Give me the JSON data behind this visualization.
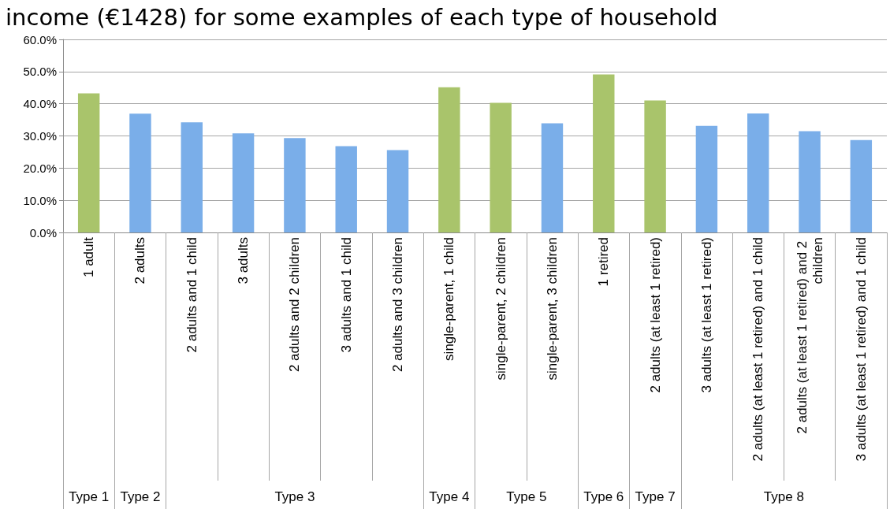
{
  "chart_data": {
    "type": "bar",
    "title": "income (€1428) for some examples of each type of household",
    "categories": [
      "1 adult",
      "2 adults",
      "2 adults and 1 child",
      "3 adults",
      "2 adults and 2 children",
      "3 adults and 1 child",
      "2 adults and 3 children",
      "single-parent, 1 child",
      "single-parent, 2 children",
      "single-parent, 3 children",
      "1 retired",
      "2 adults (at least 1 retired)",
      "3 adults (at least 1 retired)",
      "2 adults (at least 1 retired) and 1 child",
      "2 adults (at least 1 retired) and 2 children",
      "3 adults (at least 1 retired) and 1 child"
    ],
    "values": [
      43.2,
      36.9,
      34.2,
      30.8,
      29.3,
      26.8,
      25.6,
      45.1,
      40.3,
      33.9,
      49.1,
      41.0,
      33.1,
      37.0,
      31.5,
      28.7
    ],
    "colors": [
      "#a9c46b",
      "#7aaee9",
      "#7aaee9",
      "#7aaee9",
      "#7aaee9",
      "#7aaee9",
      "#7aaee9",
      "#a9c46b",
      "#a9c46b",
      "#7aaee9",
      "#a9c46b",
      "#a9c46b",
      "#7aaee9",
      "#7aaee9",
      "#7aaee9",
      "#7aaee9"
    ],
    "ylim": [
      0,
      60
    ],
    "yticks": [
      {
        "value": 0,
        "label": "0.0%"
      },
      {
        "value": 10,
        "label": "10.0%"
      },
      {
        "value": 20,
        "label": "20.0%"
      },
      {
        "value": 30,
        "label": "30.0%"
      },
      {
        "value": 40,
        "label": "40.0%"
      },
      {
        "value": 50,
        "label": "50.0%"
      },
      {
        "value": 60,
        "label": "60.0%"
      }
    ],
    "grid": "y",
    "annotations": [
      "Type 1",
      "Type 2",
      "Type 3",
      "Type 4",
      "Type 5",
      "Type 6",
      "Type 7",
      "Type 8"
    ]
  }
}
